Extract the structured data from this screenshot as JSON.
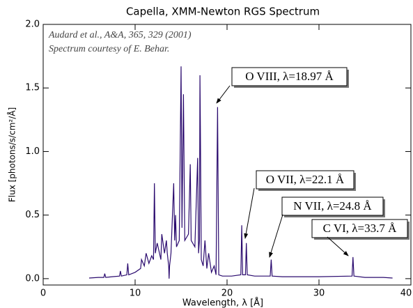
{
  "chart_data": {
    "type": "line",
    "title": "Capella, XMM-Newton RGS Spectrum",
    "x_label": "Wavelength, λ [Å]",
    "y_label": "Flux [photons/s/cm²/Å]",
    "notes": [
      "Audard et al., A&A, 365, 329 (2001)",
      "Spectrum courtesy of E. Behar."
    ],
    "annotations": [
      "O VIII, λ=18.97 Å",
      "O VII, λ=22.1 Å",
      "N VII, λ=24.8 Å",
      "C VI, λ=33.7 Å"
    ],
    "xlim": [
      0,
      40
    ],
    "ylim": [
      -0.05,
      2.0
    ],
    "xticks": [
      0,
      10,
      20,
      30,
      40
    ],
    "yticks": [
      {
        "value": 0,
        "label": "0.0"
      },
      {
        "value": 0.5,
        "label": "0.5"
      },
      {
        "value": 1,
        "label": "1.0"
      },
      {
        "value": 1.5,
        "label": "1.5"
      },
      {
        "value": 2,
        "label": "2.0"
      }
    ],
    "series": [
      {
        "color": "#2a0a6e",
        "x": [
          5,
          6,
          6.6,
          6.7,
          6.8,
          7.5,
          8.3,
          8.4,
          8.5,
          9.1,
          9.2,
          9.3,
          10.0,
          10.6,
          10.7,
          11.0,
          11.2,
          11.5,
          11.8,
          12.0,
          12.1,
          12.2,
          12.4,
          12.8,
          12.9,
          13.2,
          13.4,
          13.5,
          13.65,
          13.7,
          13.75,
          13.9,
          14.2,
          14.3,
          14.4,
          14.5,
          14.8,
          15.0,
          15.1,
          15.26,
          15.4,
          15.8,
          16.0,
          16.1,
          16.5,
          16.8,
          16.9,
          17.0,
          17.05,
          17.1,
          17.2,
          17.4,
          17.6,
          17.8,
          18.0,
          18.3,
          18.6,
          18.8,
          18.97,
          19.1,
          19.5,
          20.5,
          21.5,
          21.6,
          21.7,
          22.0,
          22.1,
          22.2,
          23.0,
          24.7,
          24.8,
          24.9,
          26,
          28,
          30,
          33.6,
          33.7,
          33.8,
          35,
          37,
          38
        ],
        "values": [
          0.005,
          0.01,
          0.01,
          0.04,
          0.01,
          0.015,
          0.02,
          0.06,
          0.02,
          0.03,
          0.12,
          0.03,
          0.05,
          0.08,
          0.15,
          0.1,
          0.2,
          0.12,
          0.18,
          0.15,
          0.75,
          0.2,
          0.28,
          0.15,
          0.35,
          0.2,
          0.3,
          0.2,
          0.1,
          0,
          0.1,
          0.2,
          0.75,
          0.3,
          0.5,
          0.25,
          0.3,
          1.67,
          0.4,
          1.45,
          0.3,
          0.35,
          0.9,
          0.3,
          0.25,
          0.95,
          0.2,
          0.3,
          1.6,
          1.2,
          0.15,
          0.1,
          0.3,
          0.08,
          0.2,
          0.05,
          0.1,
          0.03,
          1.35,
          0.03,
          0.02,
          0.02,
          0.03,
          0.42,
          0.03,
          0.03,
          0.28,
          0.03,
          0.02,
          0.02,
          0.15,
          0.02,
          0.015,
          0.015,
          0.015,
          0.02,
          0.17,
          0.02,
          0.01,
          0.01,
          0.005
        ]
      }
    ]
  }
}
